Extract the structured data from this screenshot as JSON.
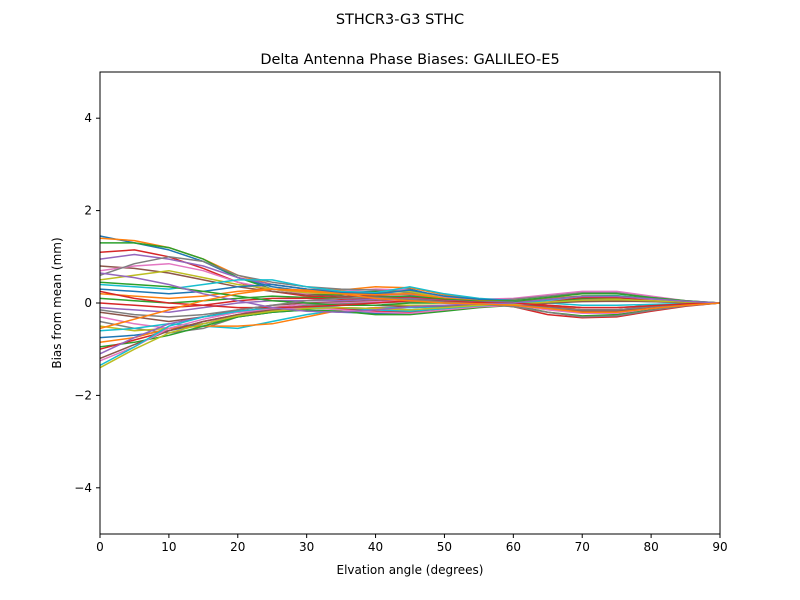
{
  "chart_data": {
    "type": "line",
    "suptitle": "STHCR3-G3        STHC",
    "title": "Delta Antenna Phase Biases: GALILEO-E5",
    "xlabel": "Elvation angle (degrees)",
    "ylabel": "Bias from mean (mm)",
    "xlim": [
      0,
      90
    ],
    "ylim": [
      -5,
      5
    ],
    "xticks": [
      0,
      10,
      20,
      30,
      40,
      50,
      60,
      70,
      80,
      90
    ],
    "yticks": [
      -4,
      -2,
      0,
      2,
      4
    ],
    "xtick_labels": [
      "0",
      "10",
      "20",
      "30",
      "40",
      "50",
      "60",
      "70",
      "80",
      "90"
    ],
    "ytick_labels": [
      "−4",
      "−2",
      "0",
      "2",
      "4"
    ],
    "grid": false,
    "legend": "none",
    "x": [
      0,
      5,
      10,
      15,
      20,
      25,
      30,
      35,
      40,
      45,
      50,
      55,
      60,
      65,
      70,
      75,
      80,
      85,
      90
    ],
    "series": [
      {
        "color": "#1f77b4",
        "values": [
          1.45,
          1.3,
          1.15,
          0.9,
          0.55,
          0.35,
          0.25,
          0.22,
          0.25,
          0.3,
          0.12,
          0.05,
          0.0,
          -0.12,
          -0.2,
          -0.18,
          -0.12,
          -0.05,
          0.0
        ]
      },
      {
        "color": "#ff7f0e",
        "values": [
          1.4,
          1.35,
          1.2,
          0.95,
          0.6,
          0.4,
          0.3,
          0.28,
          0.35,
          0.33,
          0.18,
          0.08,
          0.05,
          -0.05,
          -0.15,
          -0.15,
          -0.1,
          -0.04,
          0.0
        ]
      },
      {
        "color": "#2ca02c",
        "values": [
          1.3,
          1.3,
          1.2,
          0.95,
          0.55,
          0.3,
          0.2,
          0.18,
          0.25,
          0.28,
          0.12,
          0.02,
          -0.05,
          -0.2,
          -0.28,
          -0.25,
          -0.15,
          -0.06,
          0.0
        ]
      },
      {
        "color": "#d62728",
        "values": [
          1.1,
          1.15,
          1.0,
          0.75,
          0.45,
          0.25,
          0.15,
          0.12,
          0.18,
          0.2,
          0.08,
          0.0,
          -0.08,
          -0.25,
          -0.32,
          -0.3,
          -0.18,
          -0.07,
          0.0
        ]
      },
      {
        "color": "#9467bd",
        "values": [
          0.95,
          1.05,
          0.95,
          0.8,
          0.55,
          0.4,
          0.3,
          0.25,
          0.22,
          0.18,
          0.06,
          0.02,
          0.05,
          0.1,
          0.15,
          0.15,
          0.1,
          0.04,
          0.0
        ]
      },
      {
        "color": "#8c564b",
        "values": [
          0.8,
          0.75,
          0.65,
          0.5,
          0.35,
          0.25,
          0.18,
          0.15,
          0.15,
          0.15,
          0.06,
          0.03,
          0.02,
          -0.05,
          -0.1,
          -0.1,
          -0.06,
          -0.03,
          0.0
        ]
      },
      {
        "color": "#e377c2",
        "values": [
          0.7,
          0.8,
          0.85,
          0.7,
          0.45,
          0.3,
          0.2,
          0.25,
          0.3,
          0.28,
          0.12,
          0.08,
          0.1,
          0.18,
          0.25,
          0.25,
          0.15,
          0.05,
          0.0
        ]
      },
      {
        "color": "#7f7f7f",
        "values": [
          0.6,
          0.85,
          1.0,
          0.9,
          0.6,
          0.45,
          0.35,
          0.3,
          0.28,
          0.22,
          0.1,
          0.05,
          0.08,
          0.15,
          0.22,
          0.22,
          0.12,
          0.05,
          0.0
        ]
      },
      {
        "color": "#bcbd22",
        "values": [
          0.5,
          0.6,
          0.7,
          0.55,
          0.4,
          0.3,
          0.22,
          0.2,
          0.22,
          0.25,
          0.1,
          0.05,
          0.02,
          -0.1,
          -0.18,
          -0.18,
          -0.1,
          -0.04,
          0.0
        ]
      },
      {
        "color": "#17becf",
        "values": [
          0.4,
          0.35,
          0.3,
          0.4,
          0.5,
          0.5,
          0.35,
          0.25,
          0.22,
          0.35,
          0.2,
          0.1,
          0.05,
          0.0,
          -0.05,
          -0.05,
          -0.03,
          -0.01,
          0.0
        ]
      },
      {
        "color": "#1f77b4",
        "values": [
          0.3,
          0.25,
          0.2,
          0.25,
          0.35,
          0.4,
          0.3,
          0.22,
          0.2,
          0.28,
          0.15,
          0.08,
          0.05,
          0.05,
          0.08,
          0.1,
          0.06,
          0.03,
          0.0
        ]
      },
      {
        "color": "#ff7f0e",
        "values": [
          0.2,
          0.15,
          0.1,
          0.15,
          0.25,
          0.3,
          0.25,
          0.2,
          0.18,
          0.2,
          0.1,
          0.05,
          0.05,
          0.1,
          0.15,
          0.15,
          0.1,
          0.04,
          0.0
        ]
      },
      {
        "color": "#2ca02c",
        "values": [
          0.1,
          0.05,
          0.0,
          0.05,
          0.1,
          0.15,
          0.12,
          0.1,
          0.12,
          0.15,
          0.08,
          0.04,
          0.05,
          0.12,
          0.2,
          0.2,
          0.12,
          0.05,
          0.0
        ]
      },
      {
        "color": "#d62728",
        "values": [
          0.0,
          -0.05,
          -0.1,
          -0.05,
          0.05,
          0.1,
          0.1,
          0.08,
          0.1,
          0.12,
          0.06,
          0.02,
          0.0,
          -0.08,
          -0.15,
          -0.15,
          -0.08,
          -0.03,
          0.0
        ]
      },
      {
        "color": "#9467bd",
        "values": [
          -0.1,
          -0.15,
          -0.2,
          -0.1,
          0.0,
          0.05,
          0.05,
          0.05,
          0.08,
          0.1,
          0.05,
          0.02,
          0.03,
          0.05,
          0.08,
          0.08,
          0.05,
          0.02,
          0.0
        ]
      },
      {
        "color": "#8c564b",
        "values": [
          -0.2,
          -0.3,
          -0.4,
          -0.3,
          -0.15,
          -0.05,
          0.0,
          0.02,
          0.05,
          0.08,
          0.04,
          0.01,
          -0.02,
          -0.1,
          -0.18,
          -0.18,
          -0.1,
          -0.04,
          0.0
        ]
      },
      {
        "color": "#e377c2",
        "values": [
          -0.3,
          -0.45,
          -0.55,
          -0.45,
          -0.25,
          -0.1,
          -0.02,
          0.0,
          0.03,
          0.05,
          0.02,
          0.0,
          -0.05,
          -0.15,
          -0.22,
          -0.22,
          -0.12,
          -0.05,
          0.0
        ]
      },
      {
        "color": "#7f7f7f",
        "values": [
          -0.4,
          -0.55,
          -0.65,
          -0.55,
          -0.3,
          -0.15,
          -0.05,
          -0.02,
          0.0,
          0.03,
          0.0,
          -0.02,
          -0.05,
          -0.1,
          -0.15,
          -0.15,
          -0.08,
          -0.03,
          0.0
        ]
      },
      {
        "color": "#bcbd22",
        "values": [
          -0.5,
          -0.6,
          -0.55,
          -0.45,
          -0.3,
          -0.2,
          -0.1,
          -0.05,
          -0.05,
          -0.05,
          -0.05,
          -0.03,
          0.0,
          0.05,
          0.1,
          0.1,
          0.06,
          0.02,
          0.0
        ]
      },
      {
        "color": "#17becf",
        "values": [
          -0.6,
          -0.55,
          -0.45,
          -0.5,
          -0.55,
          -0.4,
          -0.25,
          -0.15,
          -0.1,
          -0.1,
          -0.08,
          -0.05,
          -0.02,
          0.02,
          0.05,
          0.05,
          0.03,
          0.01,
          0.0
        ]
      },
      {
        "color": "#1f77b4",
        "values": [
          -0.75,
          -0.7,
          -0.6,
          -0.45,
          -0.3,
          -0.2,
          -0.15,
          -0.2,
          -0.22,
          -0.22,
          -0.15,
          -0.08,
          -0.03,
          0.05,
          0.12,
          0.12,
          0.07,
          0.03,
          0.0
        ]
      },
      {
        "color": "#ff7f0e",
        "values": [
          -0.85,
          -0.75,
          -0.55,
          -0.5,
          -0.5,
          -0.45,
          -0.3,
          -0.15,
          -0.1,
          -0.15,
          -0.12,
          -0.06,
          -0.02,
          0.08,
          0.15,
          0.15,
          0.08,
          0.03,
          0.0
        ]
      },
      {
        "color": "#2ca02c",
        "values": [
          -0.95,
          -0.85,
          -0.7,
          -0.5,
          -0.3,
          -0.2,
          -0.15,
          -0.18,
          -0.25,
          -0.25,
          -0.18,
          -0.1,
          -0.05,
          0.02,
          0.1,
          0.12,
          0.08,
          0.03,
          0.0
        ]
      },
      {
        "color": "#d62728",
        "values": [
          -1.0,
          -0.8,
          -0.6,
          -0.4,
          -0.25,
          -0.15,
          -0.1,
          -0.12,
          -0.18,
          -0.2,
          -0.15,
          -0.08,
          -0.05,
          0.05,
          0.12,
          0.12,
          0.07,
          0.03,
          0.0
        ]
      },
      {
        "color": "#9467bd",
        "values": [
          -1.1,
          -0.75,
          -0.45,
          -0.3,
          -0.2,
          -0.15,
          -0.1,
          -0.1,
          -0.12,
          -0.15,
          -0.1,
          -0.06,
          -0.05,
          0.0,
          0.05,
          0.06,
          0.04,
          0.02,
          0.0
        ]
      },
      {
        "color": "#8c564b",
        "values": [
          -1.2,
          -0.9,
          -0.6,
          -0.4,
          -0.25,
          -0.15,
          -0.08,
          -0.05,
          -0.05,
          -0.08,
          -0.06,
          -0.04,
          -0.03,
          0.0,
          0.03,
          0.04,
          0.03,
          0.01,
          0.0
        ]
      },
      {
        "color": "#e377c2",
        "values": [
          -1.25,
          -0.95,
          -0.55,
          -0.35,
          -0.2,
          -0.12,
          -0.1,
          -0.15,
          -0.2,
          -0.22,
          -0.15,
          -0.08,
          -0.05,
          0.05,
          0.15,
          0.15,
          0.08,
          0.03,
          0.0
        ]
      },
      {
        "color": "#17becf",
        "values": [
          -1.35,
          -0.95,
          -0.5,
          -0.3,
          -0.18,
          -0.1,
          -0.08,
          -0.1,
          -0.15,
          -0.18,
          -0.12,
          -0.06,
          -0.03,
          0.06,
          0.15,
          0.16,
          0.09,
          0.04,
          0.0
        ]
      },
      {
        "color": "#bcbd22",
        "values": [
          -1.4,
          -1.0,
          -0.65,
          -0.45,
          -0.28,
          -0.18,
          -0.12,
          -0.1,
          -0.12,
          -0.15,
          -0.1,
          -0.05,
          -0.03,
          0.02,
          0.06,
          0.07,
          0.05,
          0.02,
          0.0
        ]
      },
      {
        "color": "#2ca02c",
        "values": [
          0.45,
          0.4,
          0.35,
          0.25,
          0.15,
          0.05,
          0.0,
          -0.05,
          -0.05,
          0.0,
          0.0,
          0.0,
          0.02,
          0.08,
          0.15,
          0.15,
          0.1,
          0.04,
          0.0
        ]
      },
      {
        "color": "#d62728",
        "values": [
          0.25,
          0.1,
          0.0,
          -0.05,
          -0.1,
          -0.1,
          -0.08,
          -0.05,
          0.0,
          0.05,
          0.03,
          0.01,
          0.0,
          -0.05,
          -0.1,
          -0.1,
          -0.06,
          -0.02,
          0.0
        ]
      },
      {
        "color": "#7f7f7f",
        "values": [
          -0.15,
          -0.25,
          -0.3,
          -0.25,
          -0.15,
          -0.05,
          0.05,
          0.1,
          0.12,
          0.08,
          0.02,
          -0.02,
          -0.08,
          -0.2,
          -0.3,
          -0.28,
          -0.16,
          -0.06,
          0.0
        ]
      },
      {
        "color": "#9467bd",
        "values": [
          0.65,
          0.55,
          0.4,
          0.2,
          0.05,
          -0.1,
          -0.18,
          -0.2,
          -0.15,
          -0.08,
          -0.05,
          -0.02,
          0.0,
          0.08,
          0.14,
          0.14,
          0.09,
          0.04,
          0.0
        ]
      },
      {
        "color": "#ff7f0e",
        "values": [
          -0.55,
          -0.35,
          -0.15,
          0.05,
          0.2,
          0.3,
          0.28,
          0.2,
          0.1,
          0.05,
          0.0,
          -0.02,
          -0.05,
          -0.12,
          -0.2,
          -0.2,
          -0.12,
          -0.05,
          0.0
        ]
      }
    ]
  }
}
